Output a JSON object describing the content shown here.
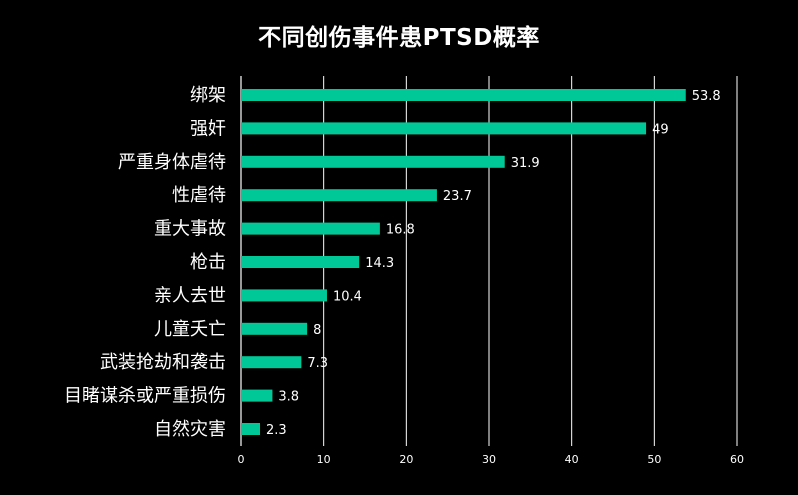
{
  "chart_data": {
    "type": "bar",
    "orientation": "horizontal",
    "title": "不同创伤事件患PTSD概率",
    "categories": [
      "绑架",
      "强奸",
      "严重身体虐待",
      "性虐待",
      "重大事故",
      "枪击",
      "亲人去世",
      "儿童夭亡",
      "武装抢劫和袭击",
      "目睹谋杀或严重损伤",
      "自然灾害"
    ],
    "values": [
      53.8,
      49,
      31.9,
      23.7,
      16.8,
      14.3,
      10.4,
      8,
      7.3,
      3.8,
      2.3
    ],
    "value_labels": [
      "53.8",
      "49",
      "31.9",
      "23.7",
      "16.8",
      "14.3",
      "10.4",
      "8",
      "7.3",
      "3.8",
      "2.3"
    ],
    "xlim": [
      0,
      60
    ],
    "xticks": [
      "0",
      "10",
      "20",
      "30",
      "40",
      "50",
      "60"
    ],
    "grid": true,
    "bar_color": "#00c896",
    "background": "#000000",
    "xlabel": "",
    "ylabel": ""
  }
}
